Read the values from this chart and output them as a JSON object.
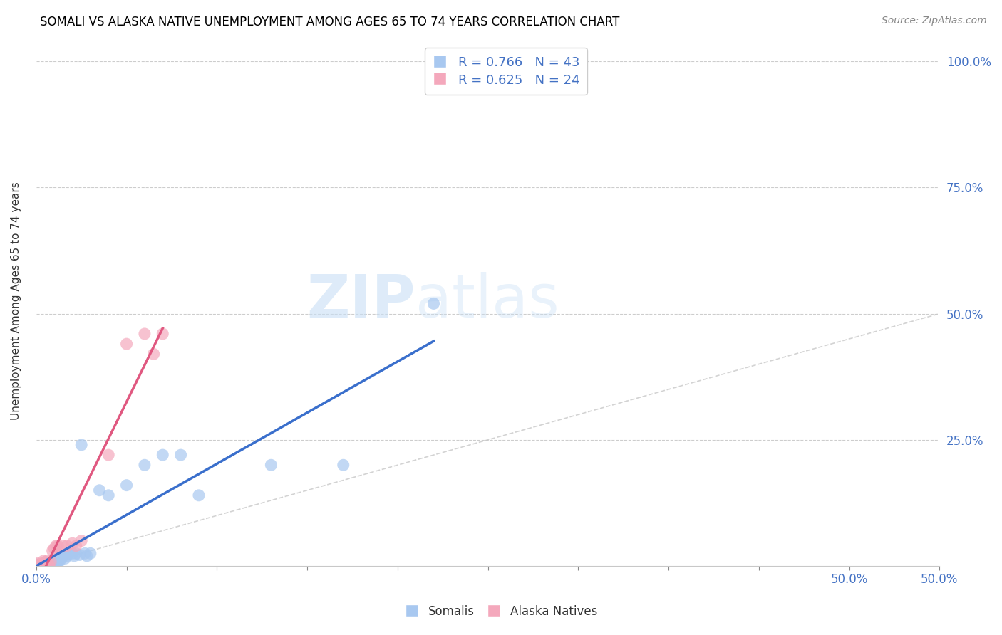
{
  "title": "SOMALI VS ALASKA NATIVE UNEMPLOYMENT AMONG AGES 65 TO 74 YEARS CORRELATION CHART",
  "source": "Source: ZipAtlas.com",
  "ylabel": "Unemployment Among Ages 65 to 74 years",
  "xlim": [
    0.0,
    0.5
  ],
  "ylim": [
    0.0,
    1.05
  ],
  "xticks": [
    0.0,
    0.05,
    0.1,
    0.15,
    0.2,
    0.25,
    0.3,
    0.35,
    0.4,
    0.45,
    0.5
  ],
  "xticklabels_show": {
    "0.0": "0.0%",
    "0.5": "50.0%"
  },
  "yticks": [
    0.25,
    0.5,
    0.75,
    1.0
  ],
  "yticklabels": [
    "25.0%",
    "50.0%",
    "75.0%",
    "100.0%"
  ],
  "somali_color": "#A8C8F0",
  "alaska_color": "#F4A8BC",
  "somali_line_color": "#3A6FCC",
  "alaska_line_color": "#E05880",
  "diagonal_color": "#C8C8C8",
  "R_somali": 0.766,
  "N_somali": 43,
  "R_alaska": 0.625,
  "N_alaska": 24,
  "legend_label_somali": "Somalis",
  "legend_label_alaska": "Alaska Natives",
  "watermark_zip": "ZIP",
  "watermark_atlas": "atlas",
  "somali_x": [
    0.0,
    0.0,
    0.0,
    0.0,
    0.0,
    0.002,
    0.003,
    0.004,
    0.005,
    0.005,
    0.006,
    0.007,
    0.007,
    0.008,
    0.009,
    0.01,
    0.01,
    0.011,
    0.012,
    0.013,
    0.014,
    0.015,
    0.016,
    0.017,
    0.018,
    0.02,
    0.021,
    0.022,
    0.024,
    0.025,
    0.027,
    0.028,
    0.03,
    0.035,
    0.04,
    0.05,
    0.06,
    0.07,
    0.08,
    0.09,
    0.13,
    0.17,
    0.22
  ],
  "somali_y": [
    0.0,
    0.0,
    0.0,
    0.002,
    0.003,
    0.0,
    0.002,
    0.003,
    0.0,
    0.004,
    0.003,
    0.002,
    0.005,
    0.004,
    0.005,
    0.0,
    0.005,
    0.003,
    0.005,
    0.01,
    0.015,
    0.02,
    0.015,
    0.02,
    0.025,
    0.025,
    0.02,
    0.025,
    0.022,
    0.24,
    0.025,
    0.02,
    0.025,
    0.15,
    0.14,
    0.16,
    0.2,
    0.22,
    0.22,
    0.14,
    0.2,
    0.2,
    0.52
  ],
  "alaska_x": [
    0.0,
    0.0,
    0.0,
    0.002,
    0.003,
    0.004,
    0.005,
    0.006,
    0.007,
    0.008,
    0.009,
    0.01,
    0.011,
    0.012,
    0.015,
    0.017,
    0.02,
    0.022,
    0.025,
    0.04,
    0.05,
    0.06,
    0.065,
    0.07
  ],
  "alaska_y": [
    0.0,
    0.003,
    0.006,
    0.003,
    0.005,
    0.01,
    0.008,
    0.01,
    0.003,
    0.008,
    0.03,
    0.035,
    0.04,
    0.04,
    0.04,
    0.04,
    0.045,
    0.04,
    0.05,
    0.22,
    0.44,
    0.46,
    0.42,
    0.46
  ],
  "somali_trend_x": [
    0.0,
    0.22
  ],
  "alaska_trend_x": [
    0.0,
    0.07
  ]
}
